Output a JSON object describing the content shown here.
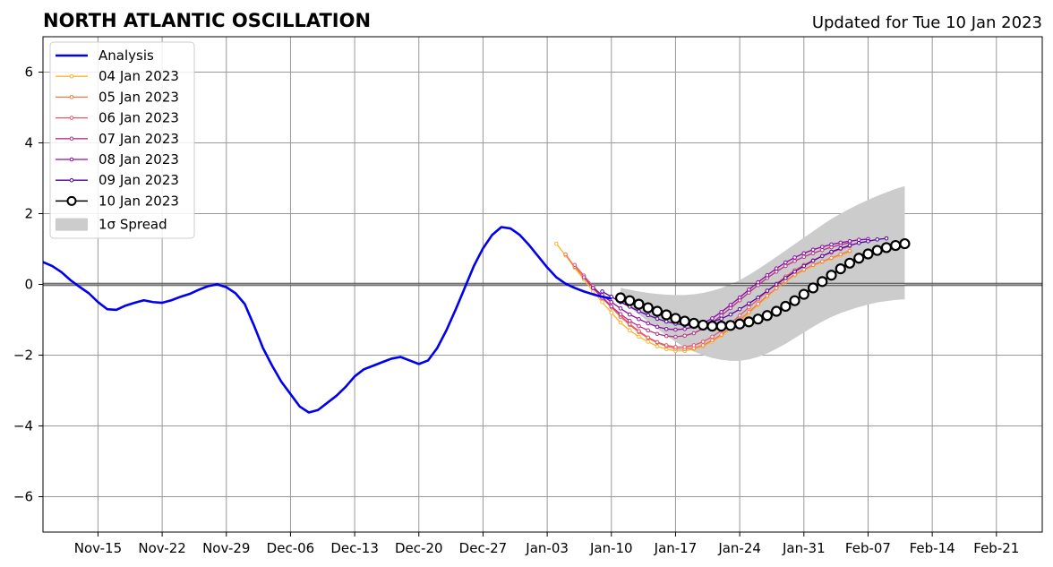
{
  "chart_data": {
    "type": "line",
    "title": "NORTH ATLANTIC OSCILLATION",
    "subtitle": "Updated for Tue 10 Jan 2023",
    "xlabel": "",
    "ylabel": "",
    "ylim": [
      -7,
      7
    ],
    "yticks": [
      -6,
      -4,
      -2,
      0,
      2,
      4,
      6
    ],
    "ytick_labels": [
      "−6",
      "−4",
      "−2",
      "0",
      "2",
      "4",
      "6"
    ],
    "xlim": [
      "2022-11-09",
      "2023-02-26"
    ],
    "xticks": [
      "2022-11-15",
      "2022-11-22",
      "2022-11-29",
      "2022-12-06",
      "2022-12-13",
      "2022-12-20",
      "2022-12-27",
      "2023-01-03",
      "2023-01-10",
      "2023-01-17",
      "2023-01-24",
      "2023-01-31",
      "2023-02-07",
      "2023-02-14",
      "2023-02-21"
    ],
    "xtick_labels": [
      "Nov-15",
      "Nov-22",
      "Nov-29",
      "Dec-06",
      "Dec-13",
      "Dec-20",
      "Dec-27",
      "Jan-03",
      "Jan-10",
      "Jan-17",
      "Jan-24",
      "Jan-31",
      "Feb-07",
      "Feb-14",
      "Feb-21"
    ],
    "grid": true,
    "legend_position": "top-left",
    "zero_line": true,
    "analysis": {
      "name": "Analysis",
      "color": "#0000ee",
      "x": [
        "2022-11-09",
        "2022-11-10",
        "2022-11-11",
        "2022-11-12",
        "2022-11-13",
        "2022-11-14",
        "2022-11-15",
        "2022-11-16",
        "2022-11-17",
        "2022-11-18",
        "2022-11-19",
        "2022-11-20",
        "2022-11-21",
        "2022-11-22",
        "2022-11-23",
        "2022-11-24",
        "2022-11-25",
        "2022-11-26",
        "2022-11-27",
        "2022-11-28",
        "2022-11-29",
        "2022-11-30",
        "2022-12-01",
        "2022-12-02",
        "2022-12-03",
        "2022-12-04",
        "2022-12-05",
        "2022-12-06",
        "2022-12-07",
        "2022-12-08",
        "2022-12-09",
        "2022-12-10",
        "2022-12-11",
        "2022-12-12",
        "2022-12-13",
        "2022-12-14",
        "2022-12-15",
        "2022-12-16",
        "2022-12-17",
        "2022-12-18",
        "2022-12-19",
        "2022-12-20",
        "2022-12-21",
        "2022-12-22",
        "2022-12-23",
        "2022-12-24",
        "2022-12-25",
        "2022-12-26",
        "2022-12-27",
        "2022-12-28",
        "2022-12-29",
        "2022-12-30",
        "2022-12-31",
        "2023-01-01",
        "2023-01-02",
        "2023-01-03",
        "2023-01-04",
        "2023-01-05",
        "2023-01-06",
        "2023-01-07",
        "2023-01-08",
        "2023-01-09",
        "2023-01-10"
      ],
      "y": [
        0.63,
        0.52,
        0.35,
        0.12,
        -0.07,
        -0.25,
        -0.5,
        -0.7,
        -0.72,
        -0.6,
        -0.52,
        -0.45,
        -0.5,
        -0.52,
        -0.45,
        -0.35,
        -0.27,
        -0.15,
        -0.05,
        0.0,
        -0.08,
        -0.25,
        -0.55,
        -1.15,
        -1.8,
        -2.3,
        -2.75,
        -3.1,
        -3.45,
        -3.62,
        -3.55,
        -3.35,
        -3.15,
        -2.9,
        -2.6,
        -2.4,
        -2.3,
        -2.2,
        -2.1,
        -2.05,
        -2.15,
        -2.25,
        -2.15,
        -1.8,
        -1.3,
        -0.72,
        -0.1,
        0.52,
        1.02,
        1.4,
        1.62,
        1.58,
        1.4,
        1.12,
        0.8,
        0.48,
        0.2,
        0.02,
        -0.1,
        -0.2,
        -0.28,
        -0.35,
        -0.4
      ]
    },
    "series": [
      {
        "name": "04 Jan 2023",
        "color": "#fdb42f",
        "start": "2023-01-04",
        "values": [
          1.15,
          0.82,
          0.47,
          0.14,
          -0.2,
          -0.5,
          -0.8,
          -1.08,
          -1.3,
          -1.48,
          -1.62,
          -1.75,
          -1.83,
          -1.88,
          -1.88,
          -1.83,
          -1.75,
          -1.62,
          -1.45,
          -1.26,
          -1.05,
          -0.82,
          -0.58,
          -0.35,
          -0.12,
          0.08,
          0.25,
          0.4,
          0.52,
          0.63,
          0.72,
          0.82,
          0.92
        ]
      },
      {
        "name": "05 Jan 2023",
        "color": "#ed7953",
        "start": "2023-01-05",
        "values": [
          0.85,
          0.5,
          0.2,
          -0.1,
          -0.38,
          -0.65,
          -0.92,
          -1.15,
          -1.35,
          -1.52,
          -1.65,
          -1.75,
          -1.82,
          -1.83,
          -1.8,
          -1.72,
          -1.58,
          -1.42,
          -1.22,
          -1.0,
          -0.78,
          -0.55,
          -0.32,
          -0.1,
          0.1,
          0.28,
          0.42,
          0.55,
          0.65,
          0.75,
          0.85,
          0.95
        ]
      },
      {
        "name": "06 Jan 2023",
        "color": "#e4576b",
        "start": "2023-01-06",
        "values": [
          0.55,
          0.25,
          -0.05,
          -0.34,
          -0.62,
          -0.88,
          -1.12,
          -1.32,
          -1.5,
          -1.63,
          -1.72,
          -1.77,
          -1.77,
          -1.72,
          -1.62,
          -1.48,
          -1.3,
          -1.1,
          -0.88,
          -0.65,
          -0.42,
          -0.2,
          0.02,
          0.22,
          0.4,
          0.55,
          0.68,
          0.8,
          0.9,
          1.0,
          1.08
        ]
      },
      {
        "name": "07 Jan 2023",
        "color": "#b83289",
        "start": "2023-01-07",
        "values": [
          0.2,
          -0.1,
          -0.38,
          -0.62,
          -0.84,
          -1.03,
          -1.18,
          -1.3,
          -1.4,
          -1.46,
          -1.48,
          -1.45,
          -1.38,
          -1.25,
          -1.08,
          -0.88,
          -0.67,
          -0.45,
          -0.23,
          -0.02,
          0.18,
          0.36,
          0.52,
          0.66,
          0.78,
          0.88,
          0.97,
          1.05,
          1.12,
          1.18
        ]
      },
      {
        "name": "08 Jan 2023",
        "color": "#8b0aa5",
        "start": "2023-01-08",
        "values": [
          -0.1,
          -0.3,
          -0.5,
          -0.68,
          -0.85,
          -0.98,
          -1.1,
          -1.2,
          -1.26,
          -1.28,
          -1.26,
          -1.2,
          -1.1,
          -0.96,
          -0.78,
          -0.58,
          -0.37,
          -0.15,
          0.06,
          0.26,
          0.45,
          0.62,
          0.76,
          0.88,
          0.98,
          1.06,
          1.13,
          1.18,
          1.22,
          1.26,
          1.28
        ]
      },
      {
        "name": "09 Jan 2023",
        "color": "#5402a3",
        "start": "2023-01-09",
        "values": [
          -0.2,
          -0.35,
          -0.5,
          -0.63,
          -0.76,
          -0.87,
          -0.97,
          -1.05,
          -1.11,
          -1.15,
          -1.15,
          -1.12,
          -1.06,
          -0.97,
          -0.85,
          -0.7,
          -0.54,
          -0.37,
          -0.18,
          0.0,
          0.18,
          0.36,
          0.52,
          0.67,
          0.8,
          0.92,
          1.02,
          1.1,
          1.17,
          1.22,
          1.27,
          1.3
        ]
      },
      {
        "name": "10 Jan 2023",
        "color": "#000000",
        "start": "2023-01-11",
        "values": [
          -0.38,
          -0.46,
          -0.56,
          -0.66,
          -0.76,
          -0.86,
          -0.96,
          -1.04,
          -1.1,
          -1.15,
          -1.18,
          -1.18,
          -1.16,
          -1.12,
          -1.06,
          -0.98,
          -0.88,
          -0.76,
          -0.62,
          -0.46,
          -0.28,
          -0.1,
          0.08,
          0.26,
          0.44,
          0.6,
          0.74,
          0.86,
          0.96,
          1.04,
          1.1,
          1.15
        ]
      }
    ],
    "spread": {
      "name": "1σ Spread",
      "color": "#cccccc",
      "start": "2023-01-11",
      "upper": [
        -0.1,
        -0.15,
        -0.2,
        -0.24,
        -0.27,
        -0.29,
        -0.3,
        -0.3,
        -0.28,
        -0.24,
        -0.18,
        -0.1,
        0.0,
        0.12,
        0.27,
        0.43,
        0.6,
        0.78,
        0.96,
        1.14,
        1.32,
        1.5,
        1.68,
        1.85,
        2.0,
        2.14,
        2.27,
        2.39,
        2.5,
        2.6,
        2.7,
        2.78
      ],
      "lower": [
        -0.5,
        -0.65,
        -0.85,
        -1.05,
        -1.25,
        -1.45,
        -1.62,
        -1.78,
        -1.9,
        -2.0,
        -2.08,
        -2.13,
        -2.16,
        -2.16,
        -2.12,
        -2.05,
        -1.95,
        -1.82,
        -1.68,
        -1.52,
        -1.36,
        -1.2,
        -1.05,
        -0.92,
        -0.81,
        -0.72,
        -0.64,
        -0.57,
        -0.51,
        -0.47,
        -0.44,
        -0.42
      ]
    }
  }
}
